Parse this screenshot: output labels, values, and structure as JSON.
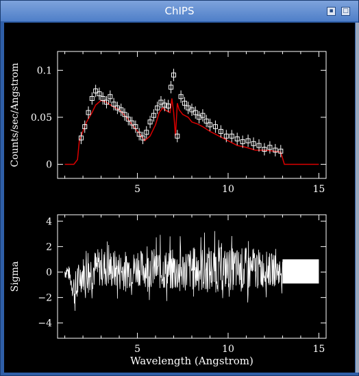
{
  "window": {
    "title": "ChIPS"
  },
  "icons": {
    "minimize": "minimize-icon",
    "maximize": "maximize-icon"
  },
  "colors": {
    "background": "#000000",
    "data": "#ffffff",
    "model": "#dd0000",
    "titlebar": "#5a86cc"
  },
  "chart_data": [
    {
      "type": "scatter",
      "title": "",
      "xlabel": "",
      "ylabel": "Counts/sec/Angstrom",
      "xlim": [
        0.6,
        15.4
      ],
      "ylim": [
        -0.015,
        0.12
      ],
      "xticks": [
        5,
        10,
        15
      ],
      "yticks": [
        0,
        0.05,
        0.1
      ],
      "ytick_labels": [
        "0",
        "0.05",
        "0.1"
      ],
      "series": [
        {
          "style": "model-line",
          "x": [
            1.0,
            1.5,
            1.7,
            1.8,
            2.0,
            2.2,
            2.5,
            2.7,
            3.0,
            3.3,
            3.6,
            4.0,
            4.4,
            4.8,
            5.1,
            5.4,
            5.7,
            6.0,
            6.2,
            6.4,
            6.6,
            6.8,
            6.9,
            7.0,
            7.1,
            7.2,
            7.3,
            7.5,
            7.8,
            8.0,
            8.3,
            8.6,
            9.0,
            9.5,
            10.0,
            10.5,
            11.0,
            11.5,
            12.0,
            12.5,
            12.9,
            13.1,
            13.5,
            14.0,
            15.0
          ],
          "y": [
            0,
            0,
            0.005,
            0.025,
            0.035,
            0.045,
            0.055,
            0.063,
            0.068,
            0.066,
            0.062,
            0.058,
            0.05,
            0.04,
            0.033,
            0.025,
            0.03,
            0.042,
            0.055,
            0.06,
            0.057,
            0.055,
            0.07,
            0.055,
            0.03,
            0.065,
            0.058,
            0.053,
            0.05,
            0.045,
            0.043,
            0.04,
            0.035,
            0.03,
            0.025,
            0.02,
            0.018,
            0.015,
            0.015,
            0.014,
            0.013,
            0,
            0,
            0,
            0
          ]
        },
        {
          "style": "data-points",
          "x": [
            1.9,
            2.1,
            2.3,
            2.5,
            2.7,
            2.9,
            3.1,
            3.3,
            3.5,
            3.7,
            3.9,
            4.1,
            4.3,
            4.5,
            4.7,
            4.9,
            5.1,
            5.3,
            5.5,
            5.7,
            5.9,
            6.1,
            6.3,
            6.5,
            6.7,
            6.85,
            7.0,
            7.2,
            7.4,
            7.6,
            7.8,
            8.0,
            8.2,
            8.4,
            8.6,
            8.8,
            9.0,
            9.3,
            9.6,
            9.9,
            10.2,
            10.5,
            10.8,
            11.1,
            11.4,
            11.7,
            12.0,
            12.3,
            12.6,
            12.9
          ],
          "y": [
            0.028,
            0.04,
            0.055,
            0.07,
            0.078,
            0.075,
            0.07,
            0.066,
            0.072,
            0.064,
            0.06,
            0.058,
            0.053,
            0.048,
            0.044,
            0.04,
            0.032,
            0.028,
            0.034,
            0.045,
            0.052,
            0.06,
            0.066,
            0.063,
            0.062,
            0.082,
            0.095,
            0.03,
            0.072,
            0.065,
            0.06,
            0.058,
            0.055,
            0.05,
            0.052,
            0.046,
            0.042,
            0.04,
            0.035,
            0.03,
            0.03,
            0.027,
            0.024,
            0.025,
            0.022,
            0.02,
            0.016,
            0.018,
            0.015,
            0.014
          ]
        }
      ]
    },
    {
      "type": "line",
      "title": "",
      "xlabel": "Wavelength (Angstrom)",
      "ylabel": "Sigma",
      "xlim": [
        0.6,
        15.4
      ],
      "ylim": [
        -5.2,
        4.5
      ],
      "xticks": [
        5,
        10,
        15
      ],
      "yticks": [
        -4,
        -2,
        0,
        2,
        4
      ],
      "ytick_labels": [
        "−4",
        "−2",
        "0",
        "2",
        "4"
      ],
      "series": [
        {
          "style": "residual-envelope",
          "x": [
            1.0,
            1.2,
            1.4,
            1.6,
            1.8,
            2.0,
            2.5,
            3.0,
            4.0,
            5.0,
            6.0,
            7.0,
            8.0,
            9.0,
            10.0,
            11.0,
            12.0,
            12.5,
            13.0
          ],
          "y_high": [
            1.1,
            0.9,
            0.6,
            1.5,
            1.8,
            2.2,
            2.8,
            3.0,
            2.8,
            2.6,
            3.0,
            2.9,
            3.1,
            3.4,
            3.0,
            3.2,
            2.7,
            2.3,
            1.8
          ],
          "y_low": [
            -1.0,
            -0.8,
            -2.5,
            -4.8,
            -2.6,
            -2.4,
            -2.5,
            -2.2,
            -2.6,
            -2.0,
            -2.4,
            -2.8,
            -2.6,
            -3.0,
            -2.5,
            -2.9,
            -2.2,
            -2.0,
            -1.7
          ]
        },
        {
          "style": "flat-band",
          "x": [
            13.0,
            15.0
          ],
          "y_high": [
            1.0,
            1.0
          ],
          "y_low": [
            -0.9,
            -0.9
          ]
        }
      ]
    }
  ]
}
